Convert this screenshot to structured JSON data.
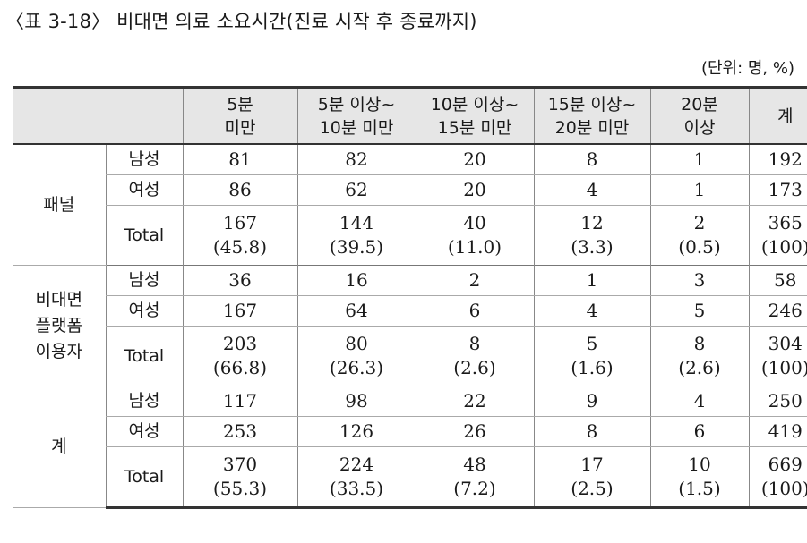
{
  "title": "〈표 3-18〉 비대면 의료 소요시간(진료 시작 후 종료까지)",
  "unit": "(단위: 명, %)",
  "headers": [
    "5분\n미만",
    "5분 이상~\n10분 미만",
    "10분 이상~\n15분 미만",
    "15분 이상~\n20분 미만",
    "20분\n이상",
    "계"
  ],
  "groups": [
    {
      "label": "패널",
      "rows": [
        {
          "sex": "남성",
          "values": [
            "81",
            "82",
            "20",
            "8",
            "1",
            "192"
          ]
        },
        {
          "sex": "여성",
          "values": [
            "86",
            "62",
            "20",
            "4",
            "1",
            "173"
          ]
        },
        {
          "sex": "Total",
          "values": [
            "167\n(45.8)",
            "144\n(39.5)",
            "40\n(11.0)",
            "12\n(3.3)",
            "2\n(0.5)",
            "365\n(100)"
          ]
        }
      ]
    },
    {
      "label": "비대면\n플랫폼\n이용자",
      "rows": [
        {
          "sex": "남성",
          "values": [
            "36",
            "16",
            "2",
            "1",
            "3",
            "58"
          ]
        },
        {
          "sex": "여성",
          "values": [
            "167",
            "64",
            "6",
            "4",
            "5",
            "246"
          ]
        },
        {
          "sex": "Total",
          "values": [
            "203\n(66.8)",
            "80\n(26.3)",
            "8\n(2.6)",
            "5\n(1.6)",
            "8\n(2.6)",
            "304\n(100)"
          ]
        }
      ]
    },
    {
      "label": "계",
      "rows": [
        {
          "sex": "남성",
          "values": [
            "117",
            "98",
            "22",
            "9",
            "4",
            "250"
          ]
        },
        {
          "sex": "여성",
          "values": [
            "253",
            "126",
            "26",
            "8",
            "6",
            "419"
          ]
        },
        {
          "sex": "Total",
          "values": [
            "370\n(55.3)",
            "224\n(33.5)",
            "48\n(7.2)",
            "17\n(2.5)",
            "10\n(1.5)",
            "669\n(100)"
          ]
        }
      ]
    }
  ]
}
